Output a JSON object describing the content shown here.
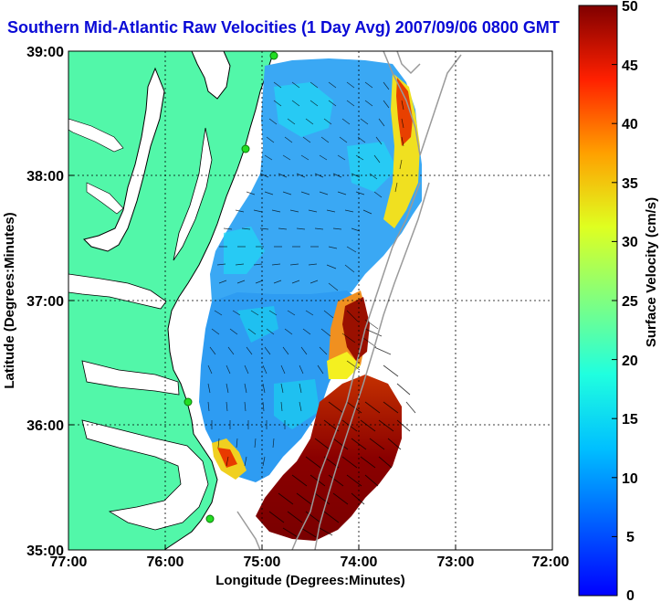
{
  "title": "Southern Mid-Atlantic Raw Velocities (1 Day Avg) 2007/09/06 0800 GMT",
  "map": {
    "xlabel": "Longitude (Degrees:Minutes)",
    "ylabel": "Latitude (Degrees:Minutes)",
    "lon_ticks": [
      "77:00",
      "76:00",
      "75:00",
      "74:00",
      "73:00",
      "72:00"
    ],
    "lat_ticks": [
      "39:00",
      "38:00",
      "37:00",
      "36:00",
      "35:00"
    ],
    "colors": {
      "land": "#52f7a9",
      "coast": "#000000",
      "bathymetry": "#9a9a9a",
      "grid": "#000000",
      "station": "#22dd22"
    }
  },
  "colorbar": {
    "label": "Surface Velocity (cm/s)",
    "ticks": [
      "50",
      "45",
      "40",
      "35",
      "30",
      "25",
      "20",
      "15",
      "10",
      "5",
      "0"
    ],
    "min": 0,
    "max": 50,
    "colormap": "jet"
  },
  "stations": [
    "station-north",
    "station-delaware",
    "station-virginia",
    "station-nc-north",
    "station-nc-south"
  ]
}
